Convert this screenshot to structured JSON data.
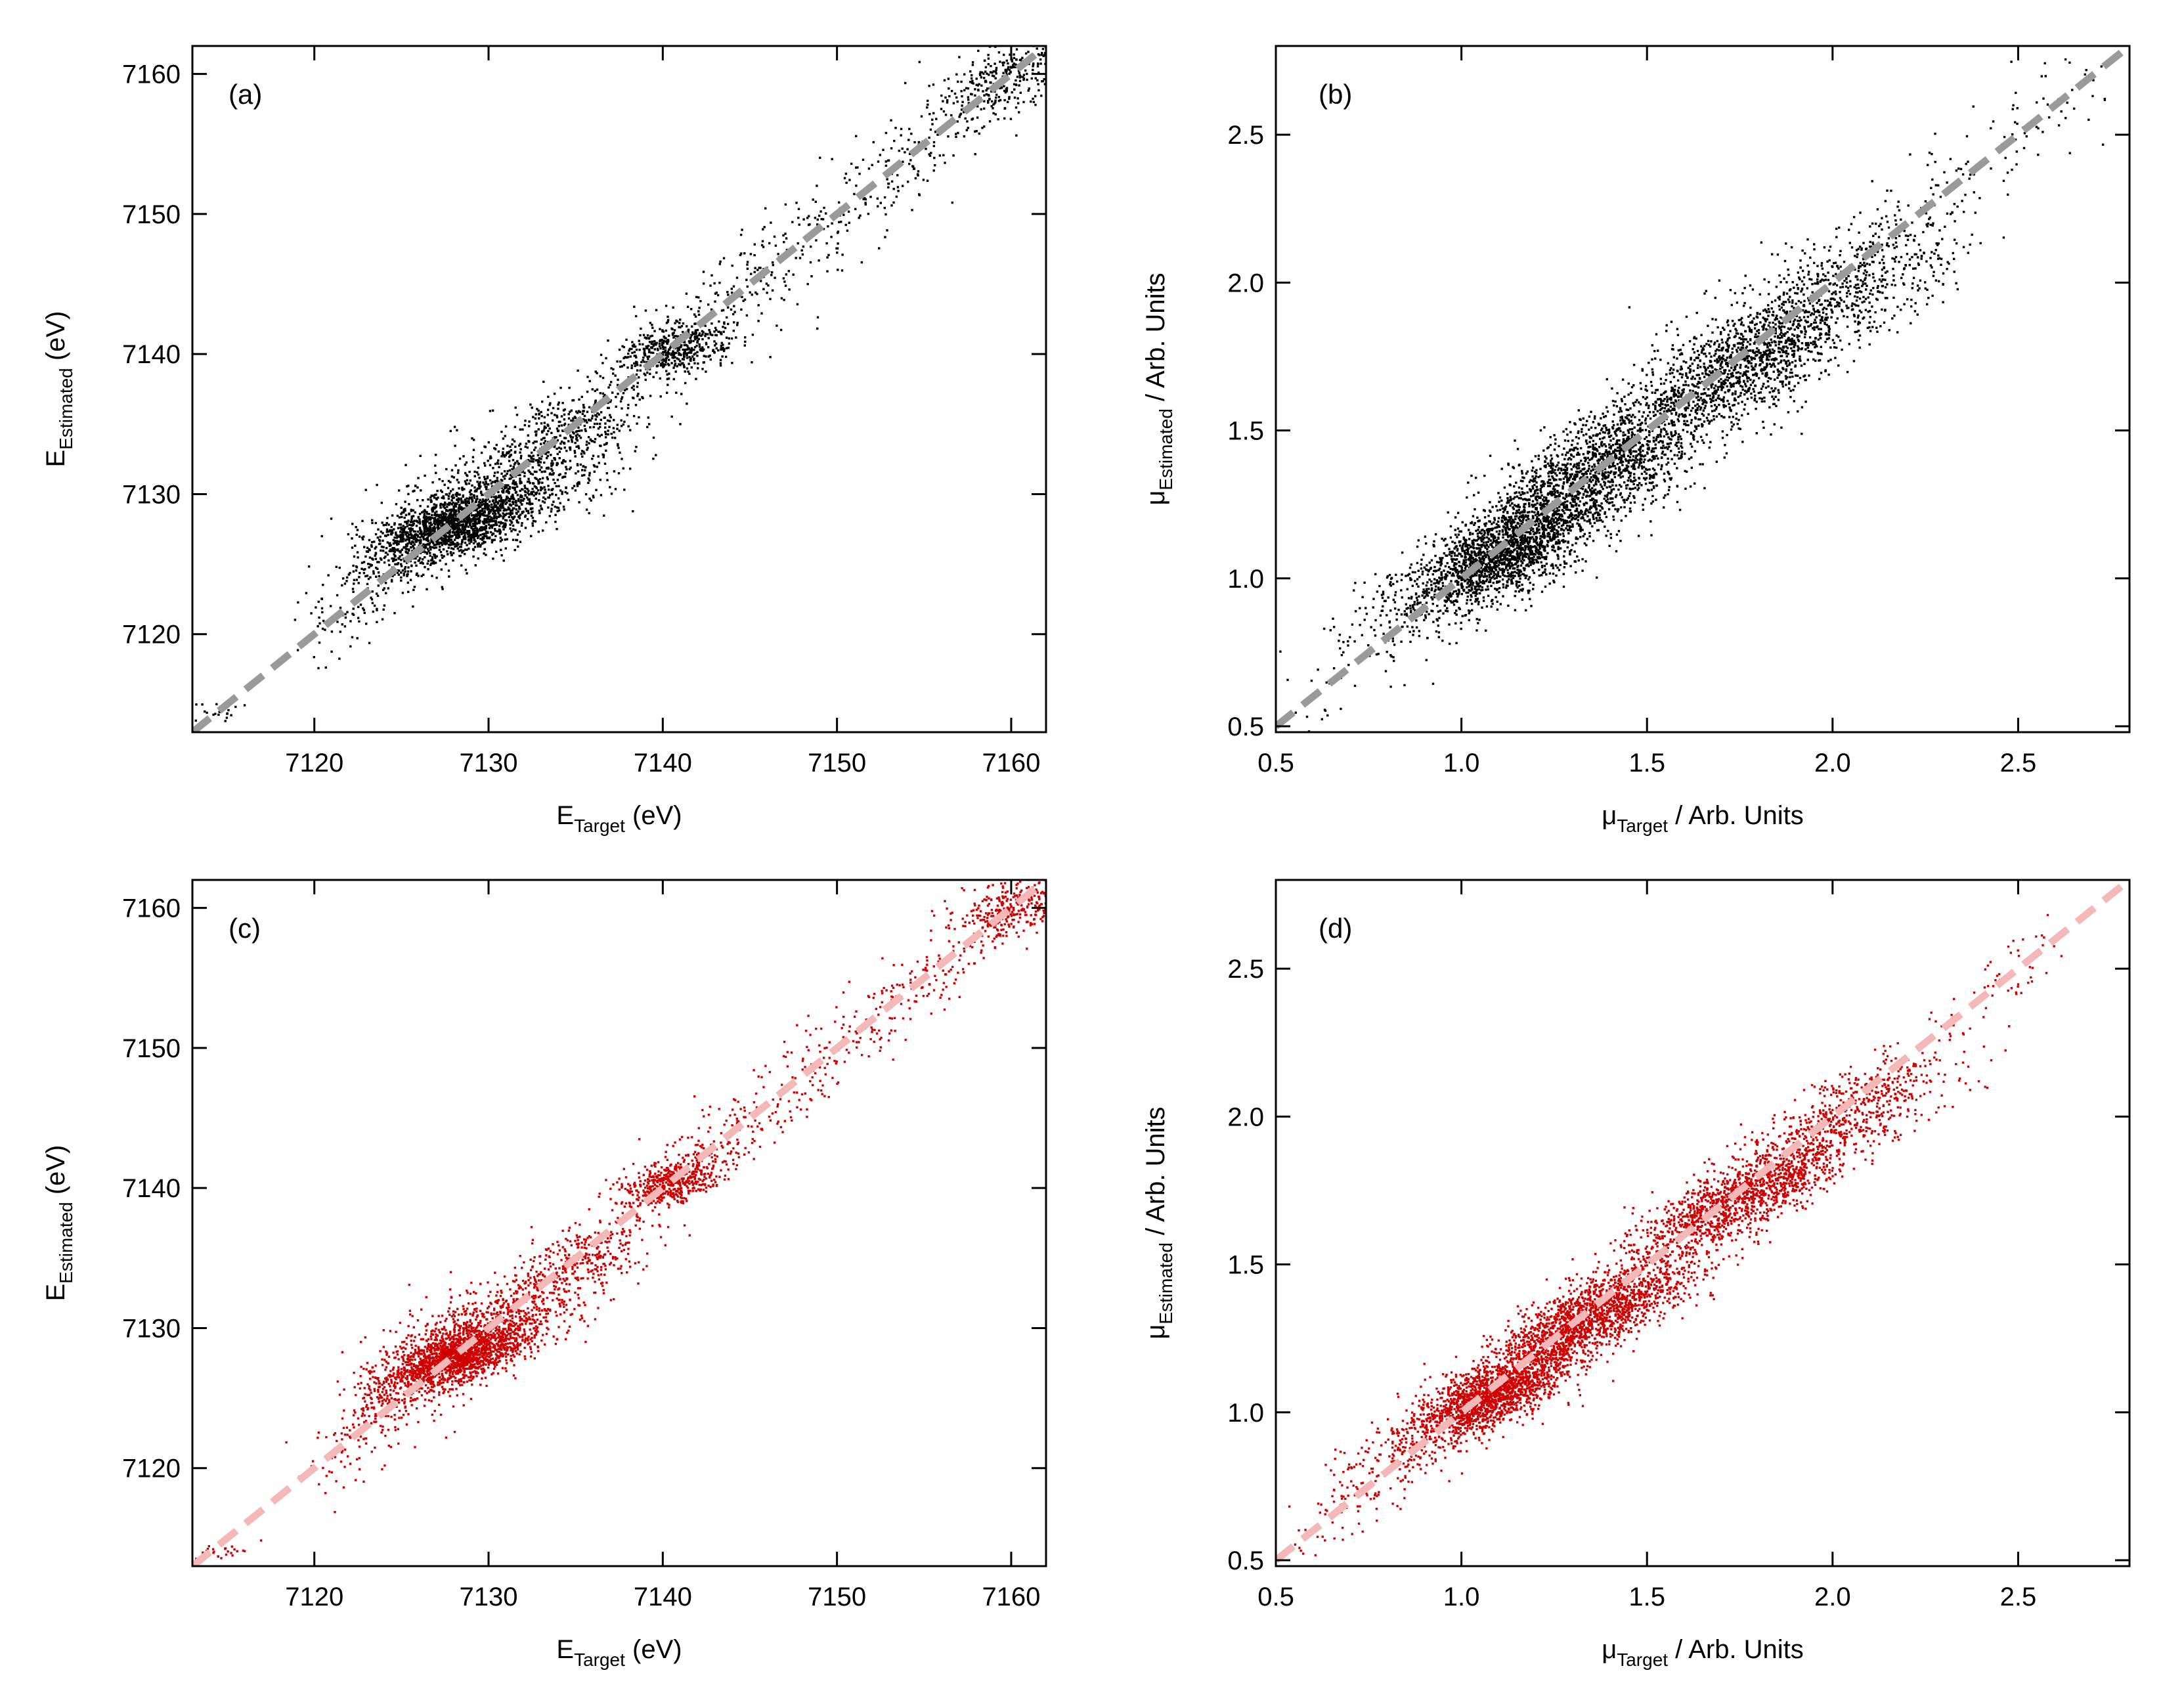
{
  "chart_data": [
    {
      "type": "scatter",
      "panel_label": "(a)",
      "color": "#000000",
      "line_color": "#9a9a9a",
      "xlabel": {
        "main": "E",
        "sub": "Target",
        "rest": " (eV)"
      },
      "ylabel": {
        "main": "E",
        "sub": "Estimated",
        "rest": " (eV)"
      },
      "xlim": [
        7113,
        7162
      ],
      "ylim": [
        7113,
        7162
      ],
      "xticks": [
        7120,
        7130,
        7140,
        7150,
        7160
      ],
      "yticks": [
        7120,
        7130,
        7140,
        7150,
        7160
      ],
      "xtick_labels": [
        "7120",
        "7130",
        "7140",
        "7150",
        "7160"
      ],
      "ytick_labels": [
        "7120",
        "7130",
        "7140",
        "7150",
        "7160"
      ],
      "reference_line": [
        [
          7113,
          7113
        ],
        [
          7162,
          7162
        ]
      ],
      "clusters": [
        {
          "cx": 7128,
          "cy": 7128,
          "sx": 2.2,
          "sy": 1.3,
          "rho": 0.55,
          "n": 1400
        },
        {
          "cx": 7131,
          "cy": 7130.5,
          "sx": 3.5,
          "sy": 2.5,
          "rho": 0.6,
          "n": 700
        },
        {
          "cx": 7140.5,
          "cy": 7140.5,
          "sx": 1.6,
          "sy": 1.0,
          "rho": 0.4,
          "n": 450
        },
        {
          "cx": 7135,
          "cy": 7135,
          "sx": 2.0,
          "sy": 1.4,
          "rho": 0.5,
          "n": 200
        },
        {
          "cx": 7160,
          "cy": 7160,
          "sx": 1.8,
          "sy": 1.3,
          "rho": 0.5,
          "n": 250
        },
        {
          "cx": 7124,
          "cy": 7125,
          "sx": 1.5,
          "sy": 1.5,
          "rho": 0.4,
          "n": 120
        },
        {
          "cx": 7114.5,
          "cy": 7114.3,
          "sx": 0.8,
          "sy": 0.4,
          "rho": 0.5,
          "n": 20
        }
      ],
      "uniform": {
        "from": 7120,
        "to": 7161,
        "spread": 2.6,
        "n": 900
      },
      "seed": 11
    },
    {
      "type": "scatter",
      "panel_label": "(b)",
      "color": "#000000",
      "line_color": "#9a9a9a",
      "xlabel": {
        "main": "μ",
        "sub": "Target",
        "rest": "  / Arb. Units"
      },
      "ylabel": {
        "main": "μ",
        "sub": "Estimated",
        "rest": "  / Arb. Units"
      },
      "xlim": [
        0.5,
        2.8
      ],
      "ylim": [
        0.48,
        2.8
      ],
      "xticks": [
        0.5,
        1.0,
        1.5,
        2.0,
        2.5
      ],
      "yticks": [
        0.5,
        1.0,
        1.5,
        2.0,
        2.5
      ],
      "xtick_labels": [
        "0.5",
        "1.0",
        "1.5",
        "2.0",
        "2.5"
      ],
      "ytick_labels": [
        "0.5",
        "1.0",
        "1.5",
        "2.0",
        "2.5"
      ],
      "reference_line": [
        [
          0.5,
          0.5
        ],
        [
          2.8,
          2.8
        ]
      ],
      "clusters": [
        {
          "cx": 1.1,
          "cy": 1.08,
          "sx": 0.11,
          "sy": 0.09,
          "rho": 0.6,
          "n": 1600
        },
        {
          "cx": 1.35,
          "cy": 1.35,
          "sx": 0.15,
          "sy": 0.13,
          "rho": 0.7,
          "n": 1600
        },
        {
          "cx": 1.75,
          "cy": 1.72,
          "sx": 0.16,
          "sy": 0.13,
          "rho": 0.7,
          "n": 1300
        },
        {
          "cx": 2.05,
          "cy": 2.0,
          "sx": 0.15,
          "sy": 0.12,
          "rho": 0.6,
          "n": 500
        },
        {
          "cx": 0.85,
          "cy": 0.9,
          "sx": 0.1,
          "sy": 0.1,
          "rho": 0.5,
          "n": 150
        }
      ],
      "uniform": {
        "from": 0.55,
        "to": 2.7,
        "spread": 0.14,
        "n": 400
      },
      "seed": 23
    },
    {
      "type": "scatter",
      "panel_label": "(c)",
      "color": "#d10000",
      "line_color": "#f4b8b8",
      "xlabel": {
        "main": "E",
        "sub": "Target",
        "rest": " (eV)"
      },
      "ylabel": {
        "main": "E",
        "sub": "Estimated",
        "rest": " (eV)"
      },
      "xlim": [
        7113,
        7162
      ],
      "ylim": [
        7113,
        7162
      ],
      "xticks": [
        7120,
        7130,
        7140,
        7150,
        7160
      ],
      "yticks": [
        7120,
        7130,
        7140,
        7150,
        7160
      ],
      "xtick_labels": [
        "7120",
        "7130",
        "7140",
        "7150",
        "7160"
      ],
      "ytick_labels": [
        "7120",
        "7130",
        "7140",
        "7150",
        "7160"
      ],
      "reference_line": [
        [
          7113,
          7113
        ],
        [
          7162,
          7162
        ]
      ],
      "clusters": [
        {
          "cx": 7128,
          "cy": 7128,
          "sx": 2.0,
          "sy": 1.2,
          "rho": 0.6,
          "n": 1400
        },
        {
          "cx": 7130,
          "cy": 7130,
          "sx": 3.0,
          "sy": 2.0,
          "rho": 0.65,
          "n": 650
        },
        {
          "cx": 7140.5,
          "cy": 7140.5,
          "sx": 1.5,
          "sy": 0.9,
          "rho": 0.5,
          "n": 450
        },
        {
          "cx": 7135,
          "cy": 7135,
          "sx": 2.0,
          "sy": 1.2,
          "rho": 0.55,
          "n": 200
        },
        {
          "cx": 7160,
          "cy": 7160,
          "sx": 1.7,
          "sy": 1.1,
          "rho": 0.5,
          "n": 250
        },
        {
          "cx": 7124,
          "cy": 7125,
          "sx": 1.4,
          "sy": 1.3,
          "rho": 0.4,
          "n": 120
        },
        {
          "cx": 7114.5,
          "cy": 7114.0,
          "sx": 0.8,
          "sy": 0.3,
          "rho": 0.5,
          "n": 25
        }
      ],
      "uniform": {
        "from": 7120,
        "to": 7161,
        "spread": 2.2,
        "n": 900
      },
      "seed": 37
    },
    {
      "type": "scatter",
      "panel_label": "(d)",
      "color": "#d10000",
      "line_color": "#f4b8b8",
      "xlabel": {
        "main": "μ",
        "sub": "Target",
        "rest": "  / Arb. Units"
      },
      "ylabel": {
        "main": "μ",
        "sub": "Estimated",
        "rest": "  / Arb. Units"
      },
      "xlim": [
        0.5,
        2.8
      ],
      "ylim": [
        0.48,
        2.8
      ],
      "xticks": [
        0.5,
        1.0,
        1.5,
        2.0,
        2.5
      ],
      "yticks": [
        0.5,
        1.0,
        1.5,
        2.0,
        2.5
      ],
      "xtick_labels": [
        "0.5",
        "1.0",
        "1.5",
        "2.0",
        "2.5"
      ],
      "ytick_labels": [
        "0.5",
        "1.0",
        "1.5",
        "2.0",
        "2.5"
      ],
      "reference_line": [
        [
          0.5,
          0.5
        ],
        [
          2.8,
          2.8
        ]
      ],
      "clusters": [
        {
          "cx": 1.08,
          "cy": 1.06,
          "sx": 0.1,
          "sy": 0.07,
          "rho": 0.7,
          "n": 1600
        },
        {
          "cx": 1.35,
          "cy": 1.33,
          "sx": 0.14,
          "sy": 0.1,
          "rho": 0.8,
          "n": 1700
        },
        {
          "cx": 1.75,
          "cy": 1.73,
          "sx": 0.14,
          "sy": 0.1,
          "rho": 0.8,
          "n": 1300
        },
        {
          "cx": 2.05,
          "cy": 2.02,
          "sx": 0.14,
          "sy": 0.1,
          "rho": 0.7,
          "n": 500
        },
        {
          "cx": 0.85,
          "cy": 0.88,
          "sx": 0.1,
          "sy": 0.09,
          "rho": 0.6,
          "n": 150
        }
      ],
      "uniform": {
        "from": 0.55,
        "to": 2.6,
        "spread": 0.1,
        "n": 400
      },
      "seed": 53
    }
  ]
}
